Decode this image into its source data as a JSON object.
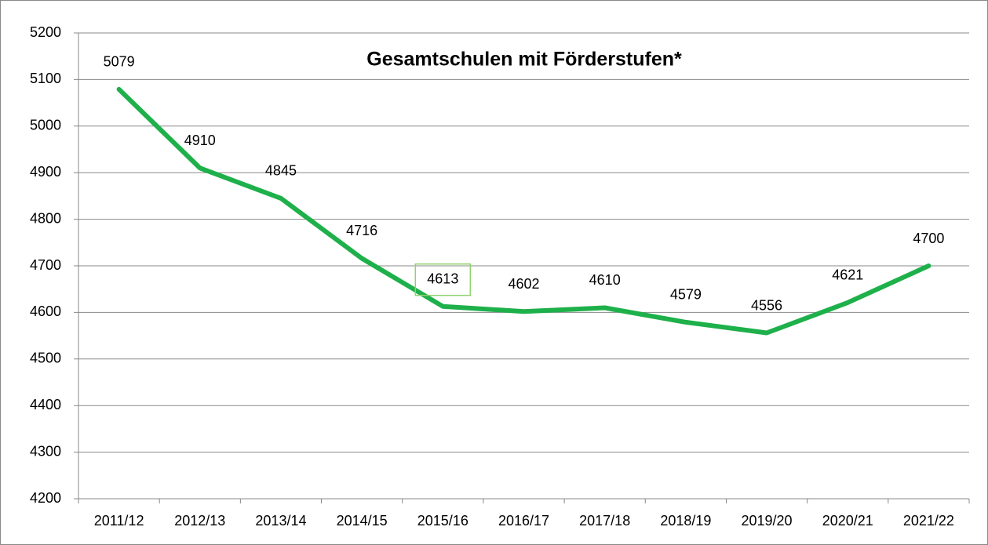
{
  "chart_data": {
    "type": "line",
    "title": "Gesamtschulen mit Förderstufen*",
    "categories": [
      "2011/12",
      "2012/13",
      "2013/14",
      "2014/15",
      "2015/16",
      "2016/17",
      "2017/18",
      "2018/19",
      "2019/20",
      "2020/21",
      "2021/22"
    ],
    "series": [
      {
        "name": "Gesamtschulen mit Förderstufen",
        "color": "#1eb04a",
        "values": [
          5079,
          4910,
          4845,
          4716,
          4613,
          4602,
          4610,
          4579,
          4556,
          4621,
          4700
        ]
      }
    ],
    "ylim": [
      4200,
      5200
    ],
    "yticks": [
      4200,
      4300,
      4400,
      4500,
      4600,
      4700,
      4800,
      4900,
      5000,
      5100,
      5200
    ],
    "grid": true
  }
}
